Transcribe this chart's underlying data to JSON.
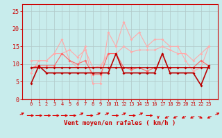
{
  "title": "",
  "xlabel": "Vent moyen/en rafales ( km/h )",
  "background_color": "#c8ecec",
  "grid_color": "#b0c8c8",
  "x": [
    0,
    1,
    2,
    3,
    4,
    5,
    6,
    7,
    8,
    9,
    10,
    11,
    12,
    13,
    14,
    15,
    16,
    17,
    18,
    19,
    20,
    21,
    22,
    23
  ],
  "line1": [
    7.5,
    11,
    11,
    13,
    17,
    11,
    9,
    15,
    4.5,
    4.5,
    19,
    15,
    22,
    17,
    19,
    15,
    17,
    17,
    15,
    15,
    11,
    8,
    9,
    15
  ],
  "line2": [
    11,
    11,
    11,
    13,
    13,
    14,
    12,
    14,
    9,
    9.5,
    13,
    13,
    15,
    13.5,
    14,
    14,
    14,
    15,
    14,
    13,
    13,
    11,
    13,
    15
  ],
  "line3": [
    9,
    9.5,
    9.5,
    9.5,
    13,
    11,
    10,
    11,
    7,
    7,
    13,
    13,
    9,
    8.5,
    9,
    8,
    9,
    9,
    9,
    9,
    9,
    9,
    11,
    9.5
  ],
  "line4": [
    9,
    9,
    9,
    9,
    9,
    9,
    9,
    9,
    9,
    9,
    9,
    9,
    9,
    9,
    9,
    9,
    9,
    9,
    9,
    9,
    9,
    9,
    9,
    9
  ],
  "line5": [
    4.5,
    9.5,
    7.5,
    7.5,
    7.5,
    7.5,
    7.5,
    7.5,
    7.5,
    7.5,
    7.5,
    13,
    7.5,
    7.5,
    7.5,
    7.5,
    7.5,
    13,
    7.5,
    7.5,
    7.5,
    7.5,
    4,
    9.5
  ],
  "ylim": [
    0,
    27
  ],
  "yticks": [
    0,
    5,
    10,
    15,
    20,
    25
  ],
  "line1_color": "#ffaaaa",
  "line2_color": "#ffaaaa",
  "line3_color": "#ff6666",
  "line4_color": "#bb0000",
  "line5_color": "#bb0000",
  "arrow_color": "#dd0000",
  "xlabel_color": "#cc0000",
  "tick_color": "#cc0000",
  "axis_color": "#cc0000",
  "arrow_angles_deg": [
    45,
    0,
    0,
    0,
    0,
    0,
    0,
    45,
    0,
    45,
    45,
    0,
    45,
    0,
    45,
    0,
    270,
    225,
    225,
    225,
    225,
    315,
    225,
    45
  ]
}
